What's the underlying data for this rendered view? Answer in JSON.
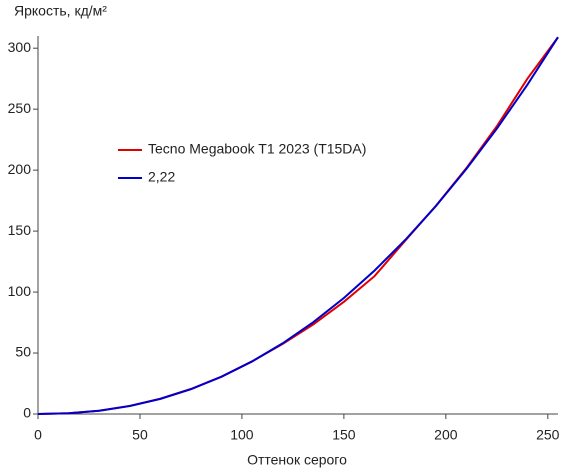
{
  "chart_data": {
    "type": "line",
    "title": "Яркость, кд/м²",
    "x_label": "Оттенок серого",
    "x": [
      0,
      15,
      30,
      45,
      60,
      75,
      90,
      105,
      120,
      135,
      150,
      165,
      180,
      195,
      210,
      225,
      240,
      255
    ],
    "series": [
      {
        "name": "Tecno Megabook T1 2023 (T15DA)",
        "color": "#e00000",
        "values": [
          0,
          0.6,
          2.7,
          6.6,
          12.5,
          20.5,
          30.6,
          43.2,
          57.5,
          73.5,
          92,
          113,
          142,
          170.5,
          201.5,
          236,
          275,
          309
        ]
      },
      {
        "name": "2,22",
        "color": "#0000cc",
        "values": [
          0,
          0.57,
          2.67,
          6.57,
          12.4,
          20.4,
          30.6,
          43.1,
          58,
          75.3,
          95.1,
          117.6,
          142.6,
          170.3,
          200.8,
          234,
          270.1,
          309
        ]
      }
    ],
    "xlim": [
      0,
      255
    ],
    "xticks": [
      0,
      50,
      100,
      150,
      200,
      250
    ],
    "ylim": [
      0,
      310
    ],
    "yticks": [
      0,
      50,
      100,
      150,
      200,
      250,
      300
    ],
    "legend": "upper left"
  }
}
